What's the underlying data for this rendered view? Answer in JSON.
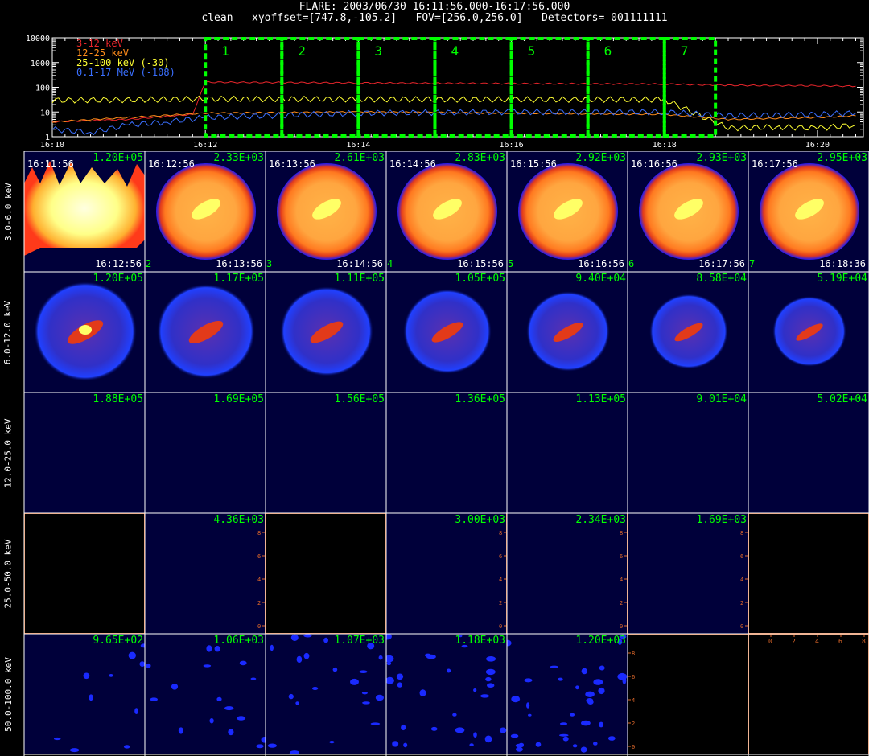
{
  "header": {
    "line1": "FLARE: 2003/06/30 16:11:56.000-16:17:56.000",
    "line2": "clean   xyoffset=[747.8,-105.2]   FOV=[256.0,256.0]   Detectors= 001111111"
  },
  "chart_data": [
    {
      "type": "line",
      "xlabel": "",
      "ylabel": "",
      "x_ticks": [
        "16:10",
        "16:12",
        "16:14",
        "16:16",
        "16:18",
        "16:20"
      ],
      "y_ticks": [
        "1",
        "10",
        "100",
        "1000",
        "10000"
      ],
      "ylim": [
        1,
        10000
      ],
      "yscale": "log",
      "series": [
        {
          "name": "3-12 keV",
          "color": "#e8252b",
          "x": [
            "16:10",
            "16:11",
            "16:11:50",
            "16:12",
            "16:14",
            "16:16",
            "16:18",
            "16:18:50",
            "16:20",
            "16:20:30"
          ],
          "y": [
            4,
            5,
            8,
            160,
            150,
            140,
            135,
            120,
            115,
            110
          ]
        },
        {
          "name": "12-25 keV",
          "color": "#ff8c1a",
          "x": [
            "16:10",
            "16:11",
            "16:12",
            "16:14",
            "16:16",
            "16:18",
            "16:18:50",
            "16:20",
            "16:20:30"
          ],
          "y": [
            4,
            6,
            9,
            10,
            9,
            8,
            5,
            6,
            7
          ]
        },
        {
          "name": "25-100 keV (-30)",
          "color": "#ffff33",
          "x": [
            "16:10",
            "16:11",
            "16:12",
            "16:14",
            "16:16",
            "16:18",
            "16:18:50",
            "16:19:30",
            "16:20",
            "16:20:30"
          ],
          "y": [
            30,
            31,
            34,
            33,
            32,
            32,
            2.2,
            2.5,
            2.2,
            3
          ]
        },
        {
          "name": "0.1-17 MeV (-108)",
          "color": "#3a6fff",
          "x": [
            "16:10",
            "16:10:30",
            "16:11",
            "16:11:30",
            "16:12",
            "16:14",
            "16:16",
            "16:18",
            "16:18:50",
            "16:20",
            "16:20:30"
          ],
          "y": [
            2,
            1.5,
            3,
            4,
            6,
            9,
            10,
            10,
            7,
            8,
            9
          ]
        }
      ],
      "intervals": [
        {
          "label": "1",
          "start": "16:12",
          "end": "16:13"
        },
        {
          "label": "2",
          "start": "16:13",
          "end": "16:14"
        },
        {
          "label": "3",
          "start": "16:14",
          "end": "16:15"
        },
        {
          "label": "4",
          "start": "16:15",
          "end": "16:16"
        },
        {
          "label": "5",
          "start": "16:16",
          "end": "16:17"
        },
        {
          "label": "6",
          "start": "16:17",
          "end": "16:18"
        },
        {
          "label": "7",
          "start": "16:18",
          "end": "16:18:40"
        }
      ]
    },
    {
      "type": "heatmap",
      "rows": [
        "3.0-6.0 keV",
        "6.0-12.0 keV",
        "12.0-25.0 keV",
        "25.0-50.0 keV",
        "50.0-100.0 keV"
      ],
      "columns": [
        {
          "index": "",
          "start": "16:11:56",
          "end": "16:12:56"
        },
        {
          "index": "2",
          "start": "16:12:56",
          "end": "16:13:56"
        },
        {
          "index": "3",
          "start": "16:13:56",
          "end": "16:14:56"
        },
        {
          "index": "4",
          "start": "16:14:56",
          "end": "16:15:56"
        },
        {
          "index": "5",
          "start": "16:15:56",
          "end": "16:16:56"
        },
        {
          "index": "6",
          "start": "16:16:56",
          "end": "16:17:56"
        },
        {
          "index": "7",
          "start": "16:17:56",
          "end": "16:18:36"
        }
      ],
      "max_values": [
        [
          "1.20E+05",
          "2.33E+03",
          "2.61E+03",
          "2.83E+03",
          "2.92E+03",
          "2.93E+03",
          "2.95E+03"
        ],
        [
          "1.20E+05",
          "1.17E+05",
          "1.11E+05",
          "1.05E+05",
          "9.40E+04",
          "8.58E+04",
          "5.19E+04"
        ],
        [
          "1.88E+05",
          "1.69E+05",
          "1.56E+05",
          "1.36E+05",
          "1.13E+05",
          "9.01E+04",
          "5.02E+04"
        ],
        [
          "",
          "4.36E+03",
          "",
          "3.00E+03",
          "2.34E+03",
          "1.69E+03",
          ""
        ],
        [
          "9.65E+02",
          "1.06E+03",
          "1.07E+03",
          "1.18E+03",
          "1.20E+03",
          "",
          ""
        ]
      ],
      "panel_styles": [
        [
          "hot",
          "ring",
          "ring",
          "ring",
          "ring",
          "ring",
          "ring"
        ],
        [
          "blue",
          "blue",
          "blue",
          "blue",
          "blue",
          "blue",
          "blue"
        ],
        [
          "navy",
          "navy",
          "navy",
          "navy",
          "navy",
          "navy",
          "navy"
        ],
        [
          "empty",
          "navy",
          "empty",
          "navy",
          "navy",
          "navy",
          "empty"
        ],
        [
          "speck",
          "speck",
          "speck",
          "speck",
          "speck",
          "empty",
          "empty"
        ]
      ],
      "axis_ticks": [
        "0",
        "2",
        "4",
        "6",
        "8"
      ]
    }
  ]
}
